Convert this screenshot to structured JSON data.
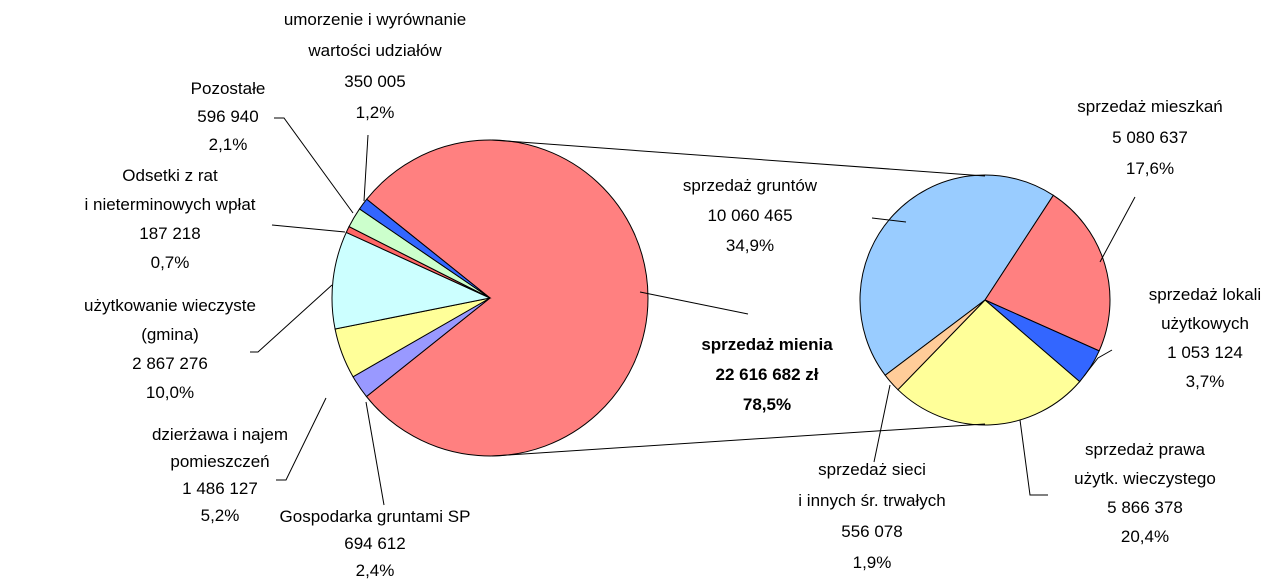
{
  "chart_data": [
    {
      "type": "pie",
      "labels": [
        [
          "sprzedaż mienia"
        ],
        [
          "Gospodarka gruntami SP"
        ],
        [
          "dzierżawa i najem",
          "pomieszczeń"
        ],
        [
          "użytkowanie wieczyste",
          "(gmina)"
        ],
        [
          "Odsetki z rat",
          "i nieterminowych wpłat"
        ],
        [
          "Pozostałe"
        ],
        [
          "umorzenie i wyrównanie",
          "wartości udziałów"
        ]
      ],
      "values": [
        22616682,
        694612,
        1486127,
        2867276,
        187218,
        596940,
        350005
      ],
      "value_labels": [
        "22 616 682 zł",
        "694 612",
        "1 486 127",
        "2 867 276",
        "187 218",
        "596 940",
        "350 005"
      ],
      "percents": [
        78.5,
        2.4,
        5.2,
        10.0,
        0.7,
        2.1,
        1.2
      ],
      "percent_labels": [
        "78,5%",
        "2,4%",
        "5,2%",
        "10,0%",
        "0,7%",
        "2,1%",
        "1,2%"
      ],
      "colors": [
        "#FF8080",
        "#9999FF",
        "#FFFF99",
        "#CCFFFF",
        "#FF6666",
        "#CCFFCC",
        "#3366FF"
      ]
    },
    {
      "type": "pie",
      "labels": [
        [
          "sprzedaż gruntów"
        ],
        [
          "sprzedaż mieszkań"
        ],
        [
          "sprzedaż lokali",
          "użytkowych"
        ],
        [
          "sprzedaż prawa",
          "użytk. wieczystego"
        ],
        [
          "sprzedaż sieci",
          "i innych śr. trwałych"
        ]
      ],
      "values": [
        10060465,
        5080637,
        1053124,
        5866378,
        556078
      ],
      "value_labels": [
        "10 060 465",
        "5 080 637",
        "1 053 124",
        "5 866 378",
        "556 078"
      ],
      "percents": [
        34.9,
        17.6,
        3.7,
        20.4,
        1.9
      ],
      "percent_labels": [
        "34,9%",
        "17,6%",
        "3,7%",
        "20,4%",
        "1,9%"
      ],
      "colors": [
        "#99CCFF",
        "#FF8080",
        "#3366FF",
        "#FFFF99",
        "#FFCC99"
      ]
    }
  ]
}
